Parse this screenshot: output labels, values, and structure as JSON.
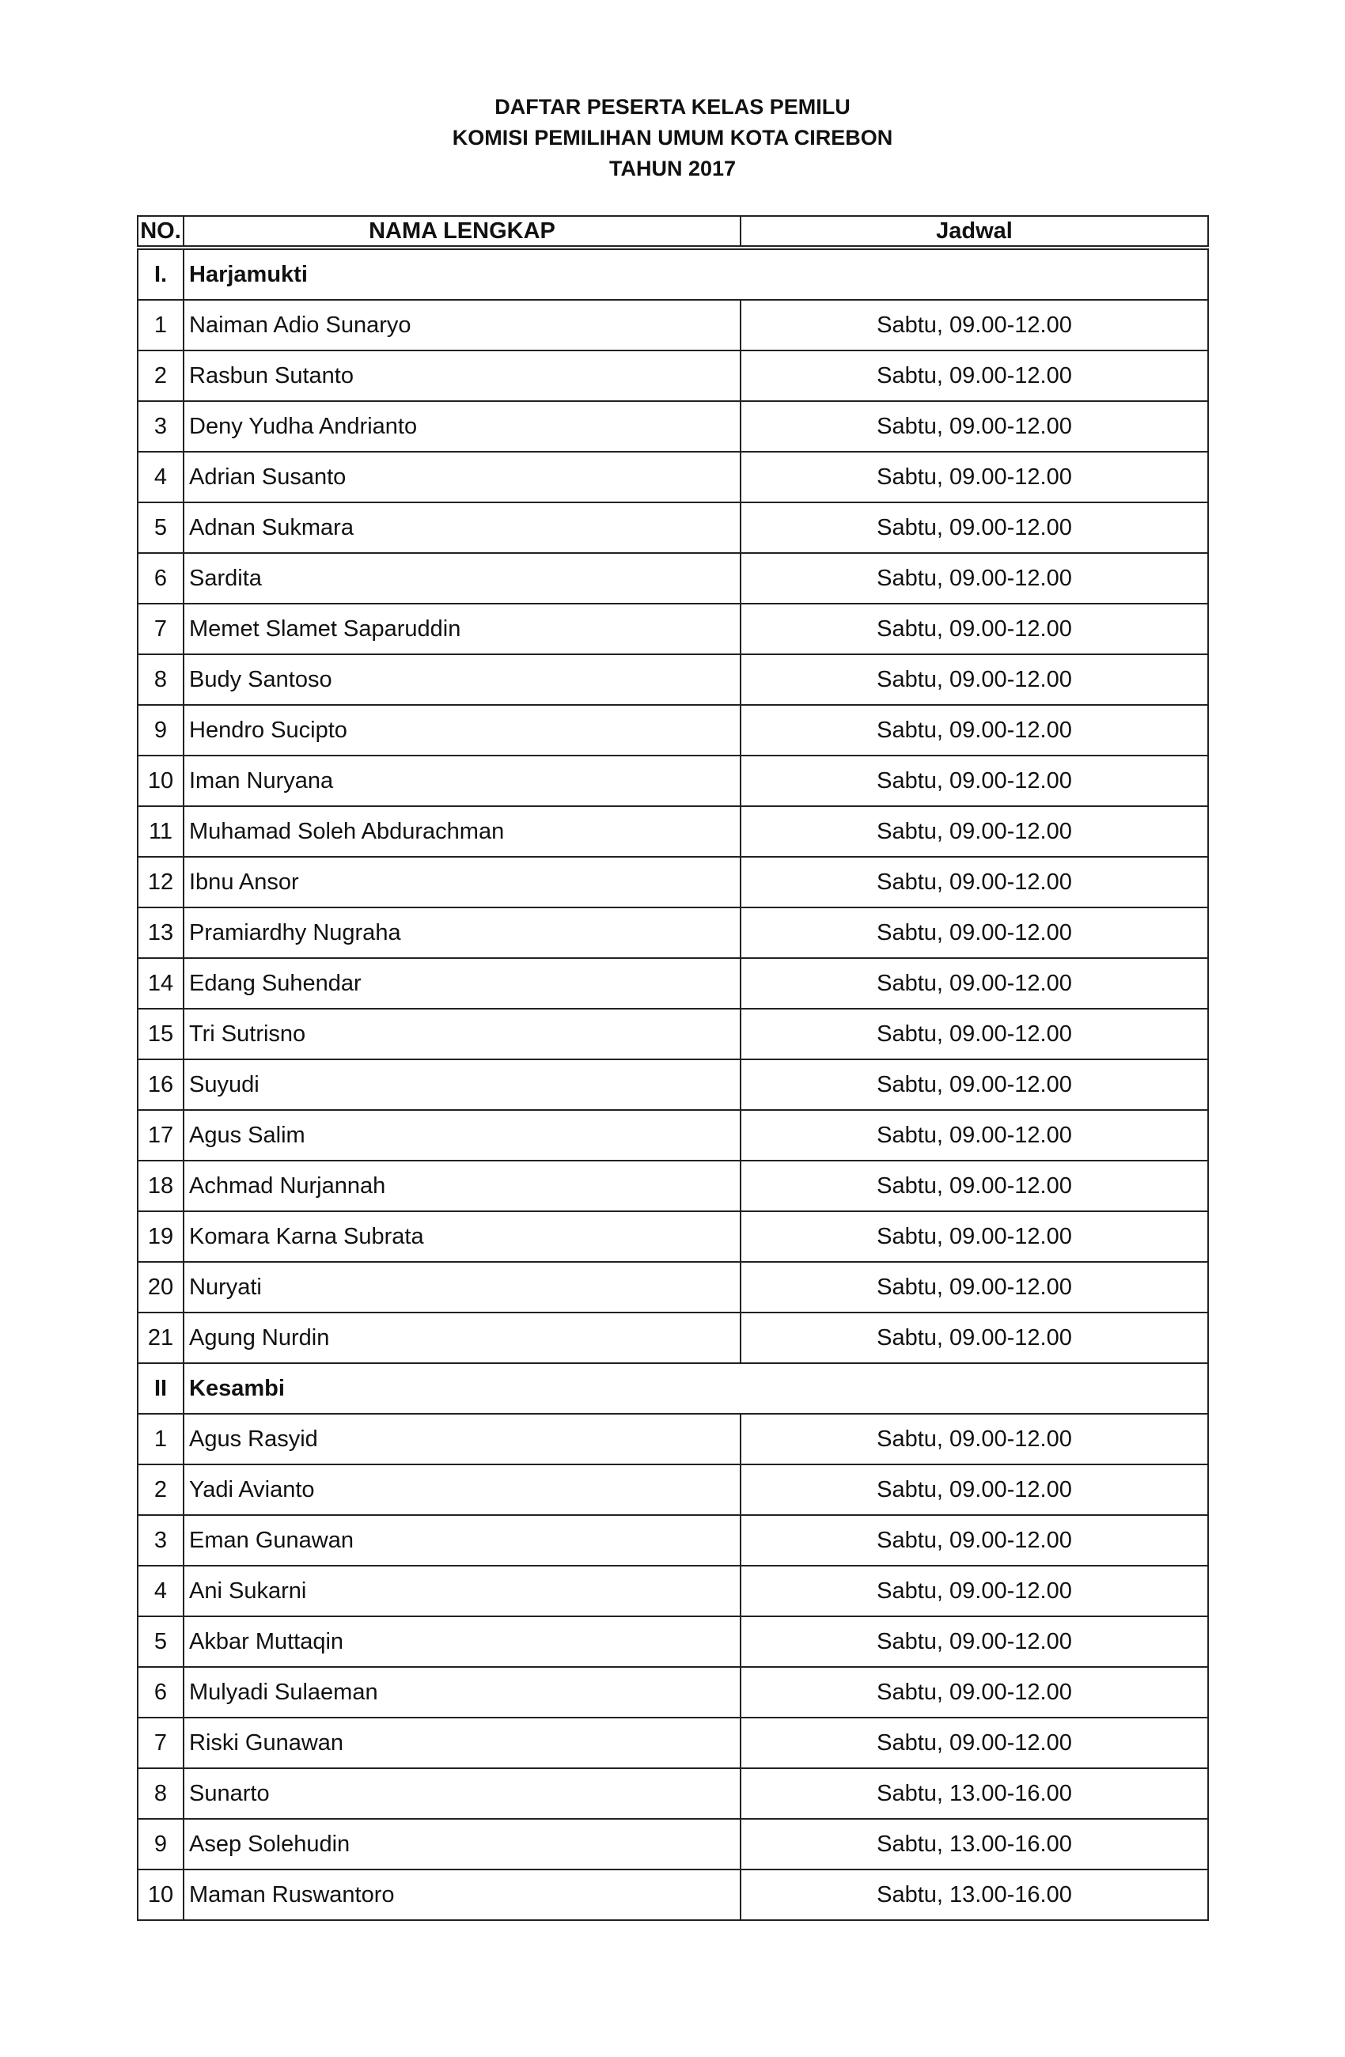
{
  "titles": [
    "DAFTAR PESERTA KELAS PEMILU",
    "KOMISI PEMILIHAN UMUM KOTA CIREBON",
    "TAHUN 2017"
  ],
  "headers": {
    "no": "NO.",
    "name": "NAMA LENGKAP",
    "jadwal": "Jadwal"
  },
  "sections": [
    {
      "no": "I.",
      "name": "Harjamukti",
      "rows": [
        [
          "1",
          "Naiman Adio Sunaryo",
          "Sabtu, 09.00-12.00"
        ],
        [
          "2",
          "Rasbun Sutanto",
          "Sabtu, 09.00-12.00"
        ],
        [
          "3",
          "Deny Yudha Andrianto",
          "Sabtu, 09.00-12.00"
        ],
        [
          "4",
          "Adrian Susanto",
          "Sabtu, 09.00-12.00"
        ],
        [
          "5",
          "Adnan Sukmara",
          "Sabtu, 09.00-12.00"
        ],
        [
          "6",
          "Sardita",
          "Sabtu, 09.00-12.00"
        ],
        [
          "7",
          "Memet Slamet Saparuddin",
          "Sabtu, 09.00-12.00"
        ],
        [
          "8",
          "Budy Santoso",
          "Sabtu, 09.00-12.00"
        ],
        [
          "9",
          "Hendro Sucipto",
          "Sabtu, 09.00-12.00"
        ],
        [
          "10",
          "Iman Nuryana",
          "Sabtu, 09.00-12.00"
        ],
        [
          "11",
          "Muhamad Soleh Abdurachman",
          "Sabtu, 09.00-12.00"
        ],
        [
          "12",
          "Ibnu Ansor",
          "Sabtu, 09.00-12.00"
        ],
        [
          "13",
          "Pramiardhy Nugraha",
          "Sabtu, 09.00-12.00"
        ],
        [
          "14",
          "Edang Suhendar",
          "Sabtu, 09.00-12.00"
        ],
        [
          "15",
          "Tri Sutrisno",
          "Sabtu, 09.00-12.00"
        ],
        [
          "16",
          "Suyudi",
          "Sabtu, 09.00-12.00"
        ],
        [
          "17",
          "Agus Salim",
          "Sabtu, 09.00-12.00"
        ],
        [
          "18",
          "Achmad Nurjannah",
          "Sabtu, 09.00-12.00"
        ],
        [
          "19",
          "Komara Karna Subrata",
          "Sabtu, 09.00-12.00"
        ],
        [
          "20",
          "Nuryati",
          "Sabtu, 09.00-12.00"
        ],
        [
          "21",
          "Agung Nurdin",
          "Sabtu, 09.00-12.00"
        ]
      ]
    },
    {
      "no": "II",
      "name": "Kesambi",
      "rows": [
        [
          "1",
          "Agus Rasyid",
          "Sabtu, 09.00-12.00"
        ],
        [
          "2",
          "Yadi Avianto",
          "Sabtu, 09.00-12.00"
        ],
        [
          "3",
          "Eman Gunawan",
          "Sabtu, 09.00-12.00"
        ],
        [
          "4",
          "Ani Sukarni",
          "Sabtu, 09.00-12.00"
        ],
        [
          "5",
          "Akbar Muttaqin",
          "Sabtu, 09.00-12.00"
        ],
        [
          "6",
          "Mulyadi Sulaeman",
          "Sabtu, 09.00-12.00"
        ],
        [
          "7",
          "Riski Gunawan",
          "Sabtu, 09.00-12.00"
        ],
        [
          "8",
          "Sunarto",
          "Sabtu, 13.00-16.00"
        ],
        [
          "9",
          "Asep Solehudin",
          "Sabtu, 13.00-16.00"
        ],
        [
          "10",
          "Maman Ruswantoro",
          "Sabtu, 13.00-16.00"
        ]
      ]
    }
  ]
}
